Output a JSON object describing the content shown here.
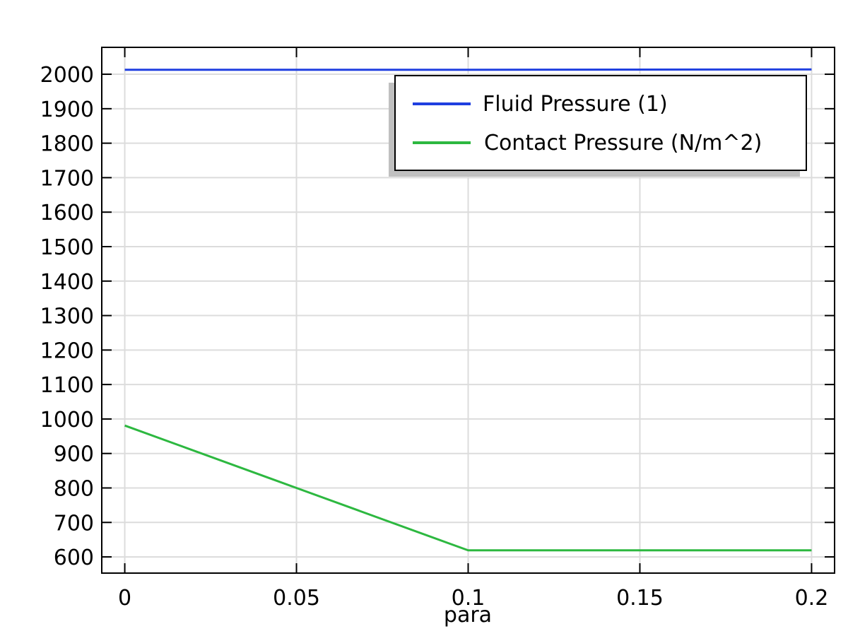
{
  "chart_data": {
    "type": "line",
    "xlabel": "para",
    "ylabel": "",
    "xlim": [
      -0.0067,
      0.2067
    ],
    "ylim": [
      553,
      2078
    ],
    "x_ticks": [
      0,
      0.05,
      0.1,
      0.15,
      0.2
    ],
    "x_tick_labels": [
      "0",
      "0.05",
      "0.1",
      "0.15",
      "0.2"
    ],
    "y_ticks": [
      600,
      700,
      800,
      900,
      1000,
      1100,
      1200,
      1300,
      1400,
      1500,
      1600,
      1700,
      1800,
      1900,
      2000
    ],
    "y_tick_labels": [
      "600",
      "700",
      "800",
      "900",
      "1000",
      "1100",
      "1200",
      "1300",
      "1400",
      "1500",
      "1600",
      "1700",
      "1800",
      "1900",
      "2000"
    ],
    "grid": true,
    "legend_position": "top-right",
    "series": [
      {
        "name": "Fluid Pressure (1)",
        "color": "#1f3fe0",
        "x": [
          0,
          0.1,
          0.2
        ],
        "y": [
          2013,
          2013,
          2014
        ]
      },
      {
        "name": "Contact Pressure (N/m^2)",
        "color": "#2db840",
        "x": [
          0,
          0.05,
          0.1,
          0.2
        ],
        "y": [
          981,
          800,
          619,
          619
        ]
      }
    ]
  }
}
